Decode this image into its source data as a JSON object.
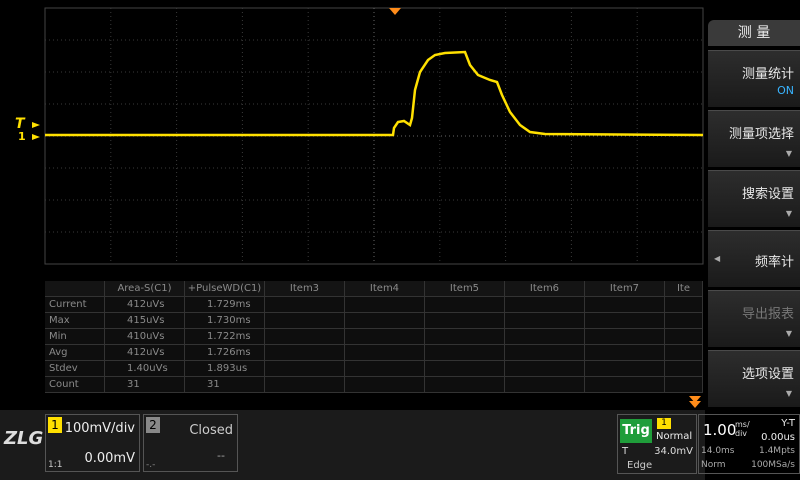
{
  "screen": {
    "markers": {
      "trigger": "T",
      "channel": "1"
    },
    "measurements": {
      "header": [
        "",
        "Area-S(C1)",
        "+PulseWD(C1)",
        "Item3",
        "Item4",
        "Item5",
        "Item6",
        "Item7",
        "Ite"
      ],
      "rows": [
        [
          "Current",
          "412uVs",
          "1.729ms"
        ],
        [
          "Max",
          "415uVs",
          "1.730ms"
        ],
        [
          "Min",
          "410uVs",
          "1.722ms"
        ],
        [
          "Avg",
          "412uVs",
          "1.726ms"
        ],
        [
          "Stdev",
          "1.40uVs",
          "1.893us"
        ],
        [
          "Count",
          "31",
          "31"
        ]
      ]
    },
    "side_menu": {
      "title": "测 量",
      "items": [
        {
          "label": "测量统计",
          "value": "ON"
        },
        {
          "label": "测量项选择"
        },
        {
          "label": "搜索设置"
        },
        {
          "label": "频率计"
        },
        {
          "label": "导出报表"
        },
        {
          "label": "选项设置"
        }
      ]
    },
    "logo": "ZLG",
    "channels": [
      {
        "number": "1",
        "scale": "100mV/div",
        "offset": "0.00mV",
        "probe": "1:1"
      },
      {
        "number": "2",
        "status": "Closed",
        "offset": "--",
        "probe": "-.-"
      }
    ],
    "trigger": {
      "label": "Trig",
      "source": "1",
      "mode": "Normal",
      "level_name": "T",
      "level": "34.0mV",
      "type": "Edge"
    },
    "timebase": {
      "scale": "1.00",
      "unit": "ms/div",
      "delay": "14.0ms",
      "acquire": "Norm",
      "mode": "Y-T",
      "offset": "0.00us",
      "depth": "1.4Mpts",
      "rate": "100MSa/s"
    }
  }
}
